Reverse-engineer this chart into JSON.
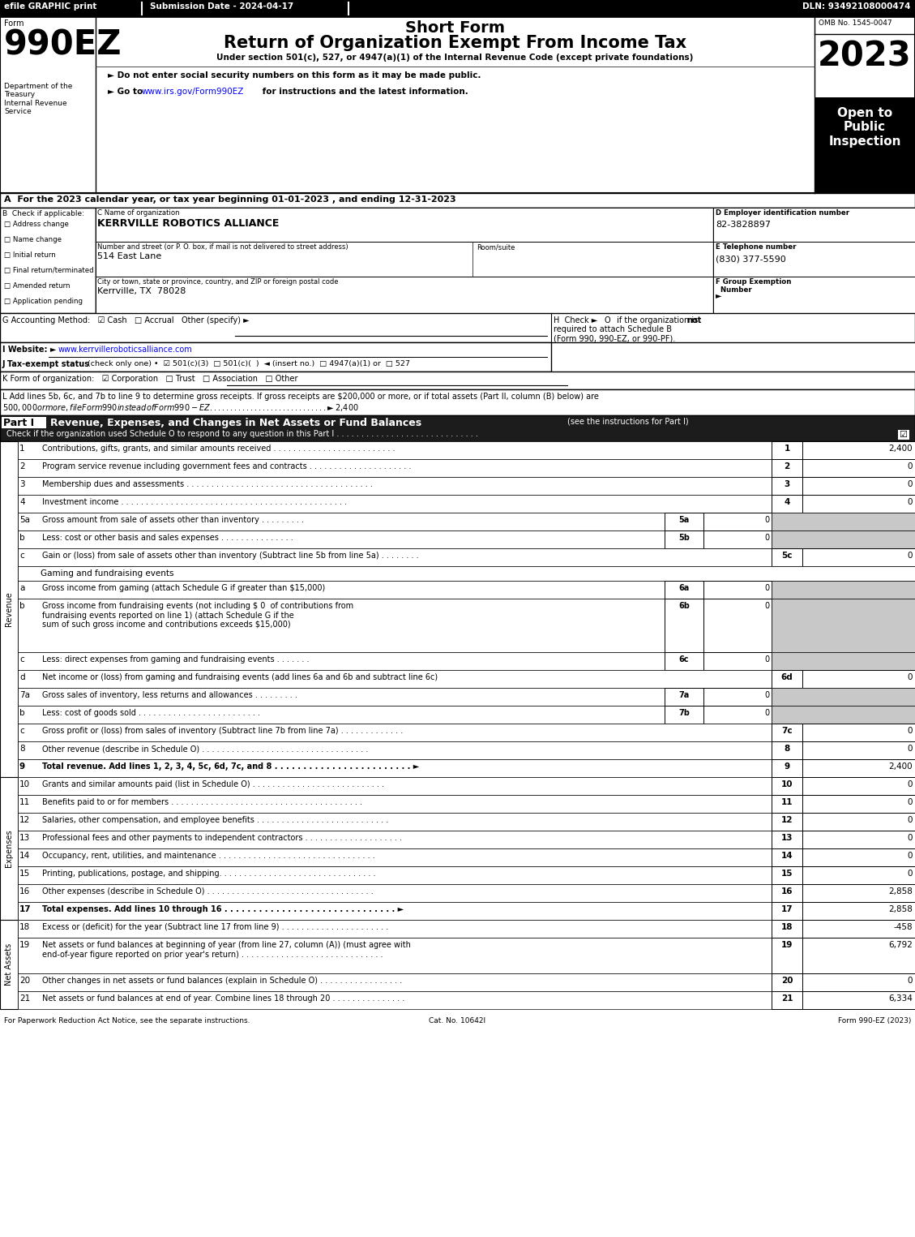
{
  "header_efile": "efile GRAPHIC print",
  "header_date": "Submission Date - 2024-04-17",
  "header_dln": "DLN: 93492108000474",
  "form_label": "Form",
  "form_number": "990EZ",
  "dept": "Department of the\nTreasury\nInternal Revenue\nService",
  "short_form": "Short Form",
  "main_title": "Return of Organization Exempt From Income Tax",
  "subtitle": "Under section 501(c), 527, or 4947(a)(1) of the Internal Revenue Code (except private foundations)",
  "bullet1": "► Do not enter social security numbers on this form as it may be made public.",
  "bullet2_pre": "► Go to ",
  "bullet2_link": "www.irs.gov/Form990EZ",
  "bullet2_post": " for instructions and the latest information.",
  "omb": "OMB No. 1545-0047",
  "year": "2023",
  "open_public": "Open to\nPublic\nInspection",
  "section_a": "A  For the 2023 calendar year, or tax year beginning 01-01-2023 , and ending 12-31-2023",
  "section_b": "B  Check if applicable:",
  "checkboxes": [
    "Address change",
    "Name change",
    "Initial return",
    "Final return/terminated",
    "Amended return",
    "Application pending"
  ],
  "section_c": "C Name of organization",
  "org_name": "KERRVILLE ROBOTICS ALLIANCE",
  "addr_label": "Number and street (or P. O. box, if mail is not delivered to street address)",
  "room_label": "Room/suite",
  "addr": "514 East Lane",
  "city_label": "City or town, state or province, country, and ZIP or foreign postal code",
  "city": "Kerrville, TX  78028",
  "section_d": "D Employer identification number",
  "ein": "82-3828897",
  "section_e": "E Telephone number",
  "phone": "(830) 377-5590",
  "section_f": "F Group Exemption\n  Number",
  "arrow": "►",
  "section_g": "G Accounting Method:",
  "g_opts": "☑ Cash   □ Accrual   Other (specify) ►",
  "section_h_pre": "H  Check ►",
  "section_h_o": "O",
  "section_h_text": " if the organization is ",
  "section_h_not": "not",
  "section_h_rest": "required to attach Schedule B\n(Form 990, 990-EZ, or 990-PF).",
  "section_i": "I Website: ►",
  "website": "www.kerrvilleroboticsalliance.com",
  "section_j": "J Tax-exempt status",
  "j_opts": "(check only one) •  ☑ 501(c)(3)  □ 501(c)(  )  ◄ (insert no.)  □ 4947(a)(1) or  □ 527",
  "section_k": "K Form of organization:",
  "k_opts": "☑ Corporation   □ Trust   □ Association   □ Other",
  "section_l1": "L Add lines 5b, 6c, and 7b to line 9 to determine gross receipts. If gross receipts are $200,000 or more, or if total assets (Part II, column (B) below) are",
  "section_l2": "$500,000 or more, file Form 990 instead of Form 990-EZ . . . . . . . . . . . . . . . . . . . . . . . . . . . . . ► $ 2,400",
  "part1_label": "Part I",
  "part1_title": "Revenue, Expenses, and Changes in Net Assets or Fund Balances",
  "part1_sub": "(see the instructions for Part I)",
  "part1_check": "Check if the organization used Schedule O to respond to any question in this Part I . . . . . . . . . . . . . . . . . . . . . . . . . . . . .",
  "footer_left": "For Paperwork Reduction Act Notice, see the separate instructions.",
  "footer_center": "Cat. No. 10642I",
  "footer_right": "Form 990-EZ (2023)"
}
